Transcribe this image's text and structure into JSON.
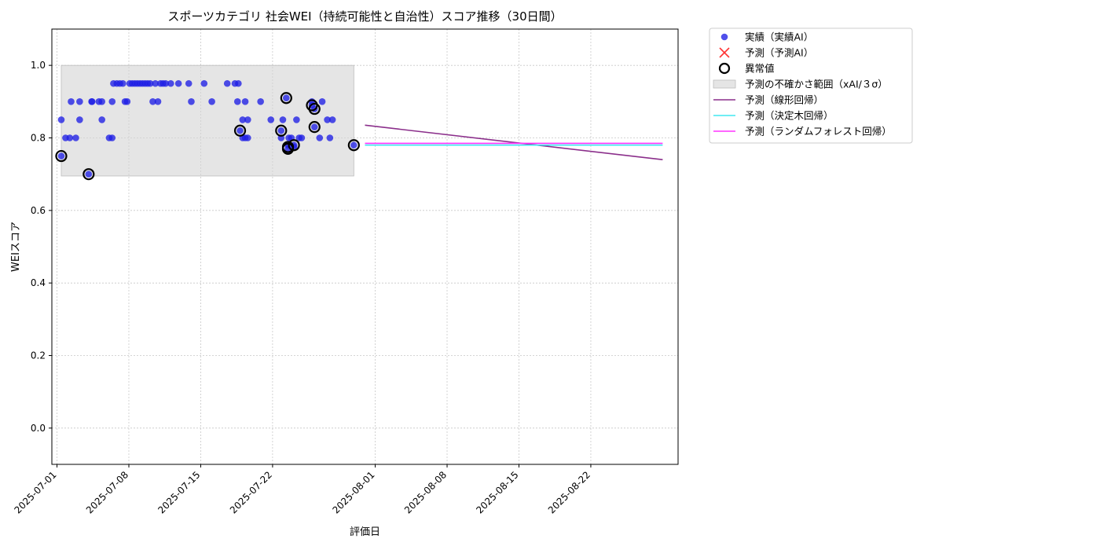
{
  "chart_data": {
    "type": "scatter",
    "title": "スポーツカテゴリ 社会WEI（持続可能性と自治性）スコア推移（30日間）",
    "xlabel": "評価日",
    "ylabel": "WEIスコア",
    "ylim": [
      -0.1,
      1.1
    ],
    "xlim": [
      "2025-06-30T12:00",
      "2025-08-30T12:00"
    ],
    "yticks": [
      "0.0",
      "0.2",
      "0.4",
      "0.6",
      "0.8",
      "1.0"
    ],
    "xticks": [
      "2025-07-01",
      "2025-07-08",
      "2025-07-15",
      "2025-07-22",
      "2025-08-01",
      "2025-08-08",
      "2025-08-15",
      "2025-08-22"
    ],
    "grid": true,
    "legend_position": "outside-top-right",
    "colors": {
      "actual": "#1f1fe6",
      "anomaly_edge": "#000000",
      "uncertainty": "#d3d3d3",
      "linear": "#8b2f8b",
      "tree": "#40e8f0",
      "forest": "#ff33ff",
      "predicted_marker": "#ff3333"
    },
    "legend": [
      {
        "key": "actual",
        "label": "実績（実績AI）"
      },
      {
        "key": "predicted",
        "label": "予測（予測AI）"
      },
      {
        "key": "anomaly",
        "label": "異常値"
      },
      {
        "key": "band",
        "label": "予測の不確かさ範囲（xAI/３σ）"
      },
      {
        "key": "linear",
        "label": "予測（線形回帰）"
      },
      {
        "key": "tree",
        "label": "予測（決定木回帰）"
      },
      {
        "key": "forest",
        "label": "予測（ランダムフォレスト回帰）"
      }
    ],
    "uncertainty_band": {
      "x": [
        "2025-07-01T10:00",
        "2025-07-29T22:00"
      ],
      "y": [
        0.695,
        1.0
      ]
    },
    "series": [
      {
        "name": "実績（実績AI）",
        "points": [
          [
            "2025-07-01T10:00",
            0.75
          ],
          [
            "2025-07-01T10:00",
            0.85
          ],
          [
            "2025-07-01T20:00",
            0.8
          ],
          [
            "2025-07-02T06:00",
            0.8
          ],
          [
            "2025-07-02T09:00",
            0.9
          ],
          [
            "2025-07-02T20:00",
            0.8
          ],
          [
            "2025-07-03T05:00",
            0.85
          ],
          [
            "2025-07-03T05:00",
            0.9
          ],
          [
            "2025-07-04T02:00",
            0.7
          ],
          [
            "2025-07-04T09:00",
            0.9
          ],
          [
            "2025-07-04T10:00",
            0.9
          ],
          [
            "2025-07-05T02:00",
            0.9
          ],
          [
            "2025-07-05T09:00",
            0.9
          ],
          [
            "2025-07-05T09:00",
            0.85
          ],
          [
            "2025-07-06T02:00",
            0.8
          ],
          [
            "2025-07-06T09:00",
            0.8
          ],
          [
            "2025-07-06T09:00",
            0.9
          ],
          [
            "2025-07-06T12:00",
            0.95
          ],
          [
            "2025-07-06T20:00",
            0.95
          ],
          [
            "2025-07-07T03:00",
            0.95
          ],
          [
            "2025-07-07T10:00",
            0.95
          ],
          [
            "2025-07-07T15:00",
            0.9
          ],
          [
            "2025-07-07T20:00",
            0.9
          ],
          [
            "2025-07-08T02:00",
            0.95
          ],
          [
            "2025-07-08T08:00",
            0.95
          ],
          [
            "2025-07-08T14:00",
            0.95
          ],
          [
            "2025-07-08T20:00",
            0.95
          ],
          [
            "2025-07-09T02:00",
            0.95
          ],
          [
            "2025-07-09T08:00",
            0.95
          ],
          [
            "2025-07-09T14:00",
            0.95
          ],
          [
            "2025-07-09T20:00",
            0.95
          ],
          [
            "2025-07-10T02:00",
            0.95
          ],
          [
            "2025-07-10T08:00",
            0.9
          ],
          [
            "2025-07-10T14:00",
            0.95
          ],
          [
            "2025-07-10T20:00",
            0.9
          ],
          [
            "2025-07-11T02:00",
            0.95
          ],
          [
            "2025-07-11T08:00",
            0.95
          ],
          [
            "2025-07-11T14:00",
            0.95
          ],
          [
            "2025-07-12T02:00",
            0.95
          ],
          [
            "2025-07-12T20:00",
            0.95
          ],
          [
            "2025-07-13T20:00",
            0.95
          ],
          [
            "2025-07-14T02:00",
            0.9
          ],
          [
            "2025-07-15T08:00",
            0.95
          ],
          [
            "2025-07-16T02:00",
            0.9
          ],
          [
            "2025-07-17T14:00",
            0.95
          ],
          [
            "2025-07-18T08:00",
            0.95
          ],
          [
            "2025-07-18T14:00",
            0.9
          ],
          [
            "2025-07-18T16:00",
            0.95
          ],
          [
            "2025-07-18T20:00",
            0.82
          ],
          [
            "2025-07-19T02:00",
            0.85
          ],
          [
            "2025-07-19T02:00",
            0.8
          ],
          [
            "2025-07-19T08:00",
            0.9
          ],
          [
            "2025-07-19T08:00",
            0.8
          ],
          [
            "2025-07-19T14:00",
            0.85
          ],
          [
            "2025-07-19T14:00",
            0.8
          ],
          [
            "2025-07-20T20:00",
            0.9
          ],
          [
            "2025-07-21T20:00",
            0.85
          ],
          [
            "2025-07-22T20:00",
            0.82
          ],
          [
            "2025-07-22T20:00",
            0.8
          ],
          [
            "2025-07-23T00:00",
            0.85
          ],
          [
            "2025-07-23T08:00",
            0.91
          ],
          [
            "2025-07-23T12:00",
            0.78
          ],
          [
            "2025-07-23T14:00",
            0.8
          ],
          [
            "2025-07-23T20:00",
            0.8
          ],
          [
            "2025-07-24T02:00",
            0.78
          ],
          [
            "2025-07-24T08:00",
            0.85
          ],
          [
            "2025-07-24T14:00",
            0.8
          ],
          [
            "2025-07-24T20:00",
            0.8
          ],
          [
            "2025-07-25T20:00",
            0.89
          ],
          [
            "2025-07-25T20:00",
            0.9
          ],
          [
            "2025-07-26T02:00",
            0.88
          ],
          [
            "2025-07-26T02:00",
            0.83
          ],
          [
            "2025-07-26T14:00",
            0.8
          ],
          [
            "2025-07-26T20:00",
            0.9
          ],
          [
            "2025-07-27T08:00",
            0.85
          ],
          [
            "2025-07-27T14:00",
            0.8
          ],
          [
            "2025-07-27T20:00",
            0.85
          ],
          [
            "2025-07-29T22:00",
            0.78
          ],
          [
            "2025-07-24T02:00",
            0.775
          ],
          [
            "2025-07-23T12:00",
            0.77
          ]
        ]
      },
      {
        "name": "異常値",
        "points": [
          [
            "2025-07-01T10:00",
            0.75
          ],
          [
            "2025-07-04T02:00",
            0.7
          ],
          [
            "2025-07-18T20:00",
            0.82
          ],
          [
            "2025-07-22T20:00",
            0.82
          ],
          [
            "2025-07-23T08:00",
            0.91
          ],
          [
            "2025-07-23T12:00",
            0.775
          ],
          [
            "2025-07-23T12:00",
            0.77
          ],
          [
            "2025-07-24T02:00",
            0.78
          ],
          [
            "2025-07-25T20:00",
            0.89
          ],
          [
            "2025-07-26T02:00",
            0.88
          ],
          [
            "2025-07-26T02:00",
            0.83
          ],
          [
            "2025-07-29T22:00",
            0.78
          ]
        ]
      },
      {
        "name": "予測（線形回帰）",
        "line": [
          [
            "2025-07-31T00:00",
            0.835
          ],
          [
            "2025-08-29T00:00",
            0.74
          ]
        ]
      },
      {
        "name": "予測（決定木回帰）",
        "line": [
          [
            "2025-07-31T00:00",
            0.78
          ],
          [
            "2025-08-29T00:00",
            0.78
          ]
        ]
      },
      {
        "name": "予測（ランダムフォレスト回帰）",
        "line": [
          [
            "2025-07-31T00:00",
            0.785
          ],
          [
            "2025-08-29T00:00",
            0.785
          ]
        ]
      }
    ]
  }
}
